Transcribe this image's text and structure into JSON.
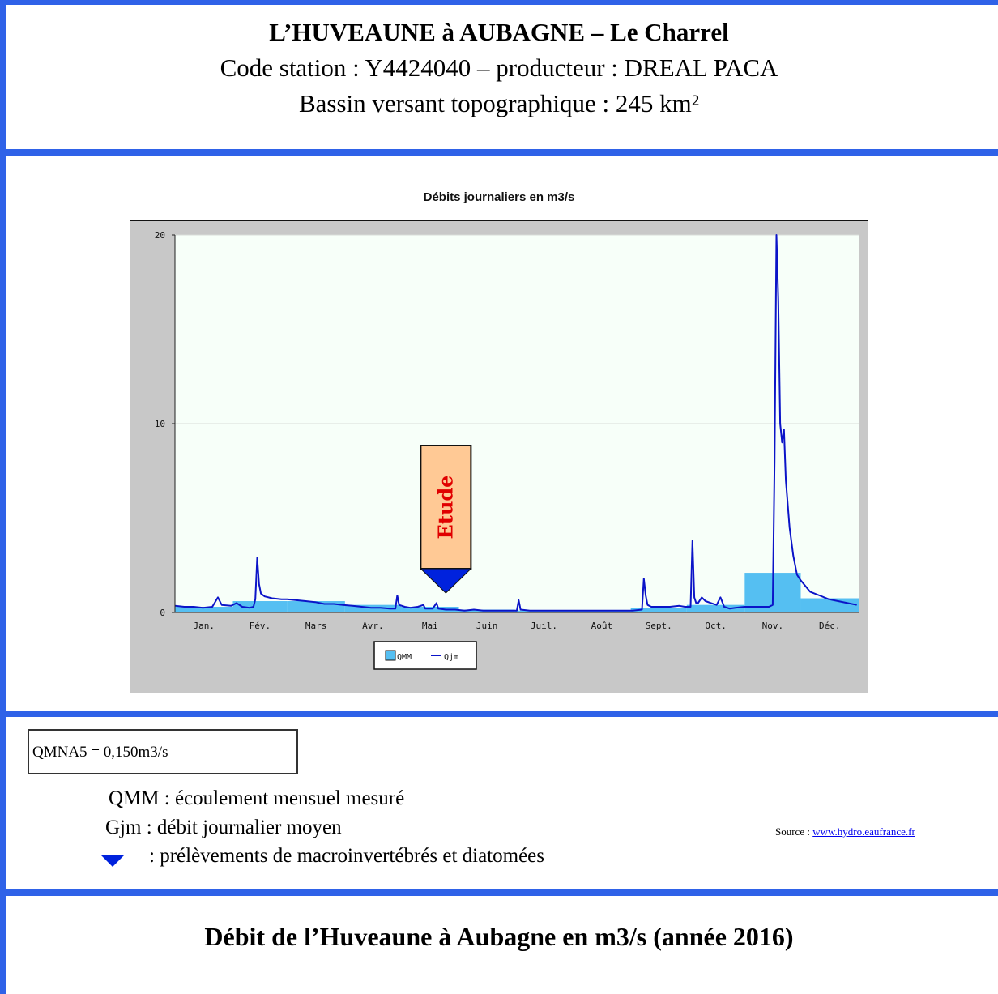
{
  "header": {
    "title": "L’HUVEAUNE à AUBAGNE – Le Charrel",
    "line2": "Code station : Y4424040 – producteur : DREAL PACA",
    "line3": "Bassin versant topographique : 245 km²"
  },
  "chart_data": {
    "type": "line",
    "title": "Débits journaliers en m3/s",
    "xlabel": "",
    "ylabel": "",
    "ylim": [
      0,
      20
    ],
    "yticks": [
      "0",
      "10",
      "20"
    ],
    "grid": true,
    "legend_position": "bottom-center",
    "categories": [
      "Jan.",
      "Fév.",
      "Mars",
      "Avr.",
      "Mai",
      "Juin",
      "Juil.",
      "Août",
      "Sept.",
      "Oct.",
      "Nov.",
      "Déc."
    ],
    "series": [
      {
        "name": "QMM",
        "kind": "bar",
        "color": "#55bff2",
        "points": [
          {
            "x0": 0,
            "x1": 31,
            "y": 0.3
          },
          {
            "x0": 31,
            "x1": 60,
            "y": 0.6
          },
          {
            "x0": 60,
            "x1": 91,
            "y": 0.6
          },
          {
            "x0": 91,
            "x1": 121,
            "y": 0.4
          },
          {
            "x0": 121,
            "x1": 152,
            "y": 0.3
          },
          {
            "x0": 152,
            "x1": 182,
            "y": 0.15
          },
          {
            "x0": 182,
            "x1": 213,
            "y": 0.1
          },
          {
            "x0": 213,
            "x1": 244,
            "y": 0.1
          },
          {
            "x0": 244,
            "x1": 274,
            "y": 0.25
          },
          {
            "x0": 274,
            "x1": 305,
            "y": 0.4
          },
          {
            "x0": 305,
            "x1": 335,
            "y": 2.1
          },
          {
            "x0": 335,
            "x1": 366,
            "y": 0.75
          }
        ]
      },
      {
        "name": "Qjm",
        "kind": "line",
        "color": "#0b14c8",
        "points": [
          [
            0,
            0.35
          ],
          [
            5,
            0.3
          ],
          [
            10,
            0.3
          ],
          [
            15,
            0.25
          ],
          [
            20,
            0.3
          ],
          [
            23,
            0.8
          ],
          [
            25,
            0.4
          ],
          [
            30,
            0.35
          ],
          [
            33,
            0.5
          ],
          [
            36,
            0.3
          ],
          [
            40,
            0.25
          ],
          [
            42,
            0.3
          ],
          [
            43,
            0.7
          ],
          [
            44,
            2.9
          ],
          [
            45,
            1.5
          ],
          [
            46,
            1.0
          ],
          [
            48,
            0.85
          ],
          [
            52,
            0.75
          ],
          [
            57,
            0.7
          ],
          [
            60,
            0.7
          ],
          [
            65,
            0.65
          ],
          [
            70,
            0.6
          ],
          [
            75,
            0.55
          ],
          [
            80,
            0.45
          ],
          [
            85,
            0.45
          ],
          [
            90,
            0.4
          ],
          [
            95,
            0.35
          ],
          [
            100,
            0.3
          ],
          [
            105,
            0.25
          ],
          [
            110,
            0.25
          ],
          [
            115,
            0.2
          ],
          [
            118,
            0.2
          ],
          [
            119,
            0.9
          ],
          [
            120,
            0.4
          ],
          [
            123,
            0.3
          ],
          [
            126,
            0.25
          ],
          [
            130,
            0.3
          ],
          [
            133,
            0.4
          ],
          [
            134,
            0.2
          ],
          [
            138,
            0.2
          ],
          [
            140,
            0.5
          ],
          [
            141,
            0.2
          ],
          [
            145,
            0.15
          ],
          [
            150,
            0.15
          ],
          [
            155,
            0.1
          ],
          [
            160,
            0.15
          ],
          [
            165,
            0.1
          ],
          [
            170,
            0.1
          ],
          [
            175,
            0.1
          ],
          [
            180,
            0.1
          ],
          [
            183,
            0.1
          ],
          [
            184,
            0.65
          ],
          [
            185,
            0.15
          ],
          [
            190,
            0.1
          ],
          [
            200,
            0.1
          ],
          [
            210,
            0.1
          ],
          [
            220,
            0.1
          ],
          [
            230,
            0.1
          ],
          [
            240,
            0.1
          ],
          [
            245,
            0.1
          ],
          [
            250,
            0.15
          ],
          [
            251,
            1.8
          ],
          [
            252,
            0.9
          ],
          [
            253,
            0.4
          ],
          [
            255,
            0.3
          ],
          [
            260,
            0.3
          ],
          [
            265,
            0.3
          ],
          [
            270,
            0.35
          ],
          [
            273,
            0.3
          ],
          [
            276,
            0.3
          ],
          [
            277,
            3.8
          ],
          [
            278,
            0.8
          ],
          [
            279,
            0.5
          ],
          [
            280,
            0.5
          ],
          [
            282,
            0.8
          ],
          [
            284,
            0.6
          ],
          [
            287,
            0.5
          ],
          [
            290,
            0.4
          ],
          [
            292,
            0.8
          ],
          [
            294,
            0.3
          ],
          [
            297,
            0.2
          ],
          [
            300,
            0.25
          ],
          [
            305,
            0.3
          ],
          [
            310,
            0.3
          ],
          [
            315,
            0.3
          ],
          [
            318,
            0.3
          ],
          [
            320,
            0.4
          ],
          [
            321,
            8.0
          ],
          [
            322,
            20.0
          ],
          [
            323,
            16.5
          ],
          [
            324,
            10.0
          ],
          [
            325,
            9.0
          ],
          [
            326,
            9.7
          ],
          [
            327,
            7.0
          ],
          [
            329,
            4.5
          ],
          [
            331,
            3.0
          ],
          [
            333,
            2.0
          ],
          [
            335,
            1.7
          ],
          [
            340,
            1.1
          ],
          [
            345,
            0.9
          ],
          [
            350,
            0.7
          ],
          [
            355,
            0.6
          ],
          [
            360,
            0.5
          ],
          [
            365,
            0.4
          ]
        ]
      }
    ],
    "marker": {
      "label": "Etude",
      "x": 145
    }
  },
  "qmna5": "QMNA5 = 0,150m3/s",
  "legend": {
    "qmm": "QMM  : écoulement mensuel mesuré",
    "gjm": "Gjm : débit journalier moyen",
    "triangle": ": prélèvements de macroinvertébrés et diatomées"
  },
  "source": {
    "prefix": "Source : ",
    "link": "www.hydro.eaufrance.fr"
  },
  "footer": {
    "title": "Débit de l’Huveaune à Aubagne en m3/s (année 2016)"
  },
  "colors": {
    "frame": "#2f62e8",
    "plot_bg": "#f7fff9",
    "panel_bg": "#c8c8c8",
    "qmm": "#55bff2",
    "qjm": "#0b14c8",
    "marker_fill": "#ffc995",
    "marker_text": "#e00000",
    "triangle": "#0022dd"
  }
}
